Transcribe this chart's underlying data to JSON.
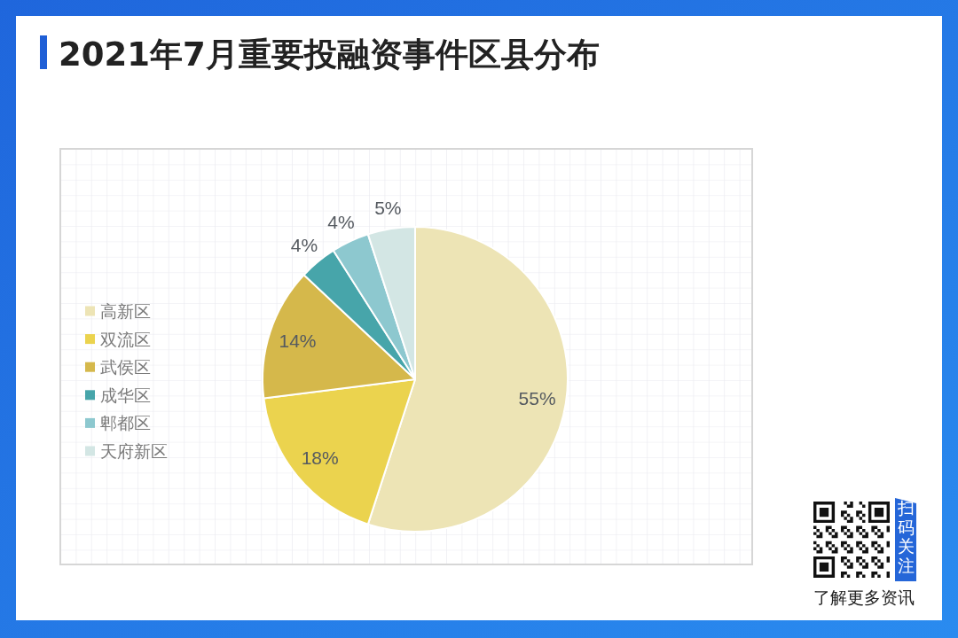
{
  "chart_data": {
    "type": "pie",
    "title": "2021年7月重要投融资事件区县分布",
    "categories": [
      "高新区",
      "双流区",
      "武侯区",
      "成华区",
      "郫都区",
      "天府新区"
    ],
    "values": [
      55,
      18,
      14,
      4,
      4,
      5
    ],
    "colors": [
      "#ede4b5",
      "#ebd34e",
      "#d5b84b",
      "#47a5aa",
      "#8dc8cf",
      "#d3e6e4"
    ],
    "value_labels": [
      "55%",
      "18%",
      "14%",
      "4%",
      "4%",
      "5%"
    ],
    "legend": "left",
    "annotations": [
      "扫码关注",
      "了解更多资讯"
    ]
  }
}
